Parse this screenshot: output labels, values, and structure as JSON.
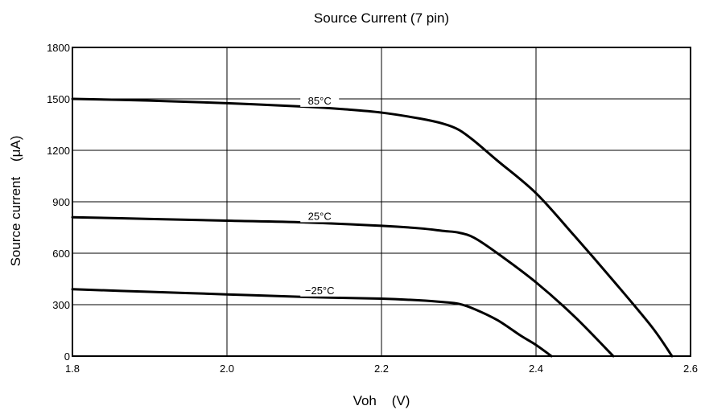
{
  "chart_data": {
    "type": "line",
    "title": "Source Current (7 pin)",
    "xlabel": "Voh    (V)",
    "ylabel": "Source current    (μA)",
    "xlim": [
      1.8,
      2.6
    ],
    "ylim": [
      0,
      1800
    ],
    "xticks": [
      "1.8",
      "2.0",
      "2.2",
      "2.4",
      "2.6"
    ],
    "yticks": [
      "0",
      "300",
      "600",
      "900",
      "1200",
      "1500",
      "1800"
    ],
    "grid": true,
    "series": [
      {
        "name": "85°C",
        "x": [
          1.8,
          1.9,
          2.0,
          2.1,
          2.15,
          2.2,
          2.25,
          2.28,
          2.3,
          2.32,
          2.35,
          2.4,
          2.45,
          2.5,
          2.55,
          2.576
        ],
        "y": [
          1500,
          1490,
          1475,
          1455,
          1440,
          1420,
          1385,
          1355,
          1320,
          1255,
          1140,
          950,
          700,
          440,
          170,
          0
        ]
      },
      {
        "name": "25°C",
        "x": [
          1.8,
          1.9,
          2.0,
          2.1,
          2.2,
          2.25,
          2.28,
          2.3,
          2.32,
          2.35,
          2.4,
          2.45,
          2.5
        ],
        "y": [
          810,
          800,
          790,
          780,
          760,
          745,
          730,
          720,
          690,
          600,
          430,
          230,
          0
        ]
      },
      {
        "name": "−25°C",
        "x": [
          1.8,
          1.9,
          2.0,
          2.1,
          2.2,
          2.25,
          2.28,
          2.3,
          2.32,
          2.35,
          2.38,
          2.4,
          2.42
        ],
        "y": [
          390,
          375,
          360,
          345,
          335,
          325,
          315,
          305,
          275,
          210,
          120,
          65,
          0
        ]
      }
    ]
  }
}
